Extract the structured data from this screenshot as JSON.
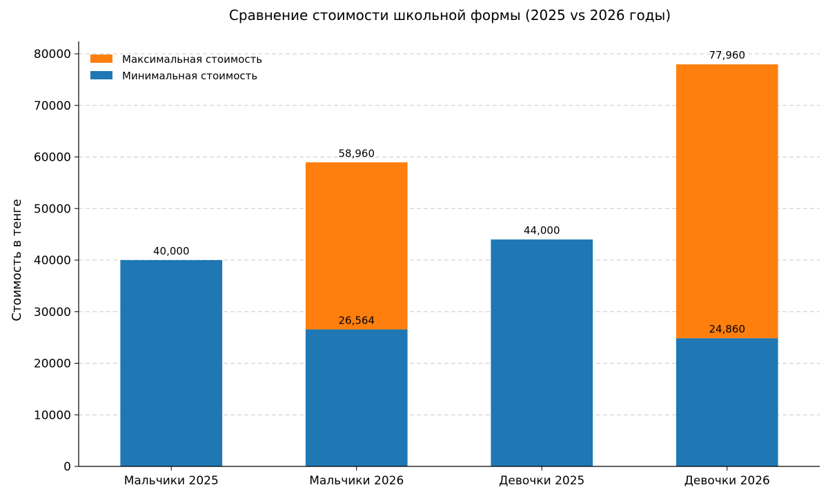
{
  "chart_data": {
    "type": "bar",
    "stacked": true,
    "title": "Сравнение стоимости школьной формы (2025 vs 2026 годы)",
    "xlabel": "",
    "ylabel": "Стоимость в тенге",
    "ylim": [
      0,
      80000
    ],
    "yticks": [
      0,
      10000,
      20000,
      30000,
      40000,
      50000,
      60000,
      70000,
      80000
    ],
    "categories": [
      "Мальчики 2025",
      "Мальчики 2026",
      "Девочки 2025",
      "Девочки 2026"
    ],
    "series": [
      {
        "name": "Минимальная стоимость",
        "color": "#1f77b4",
        "values": [
          40000,
          26564,
          44000,
          24860
        ]
      },
      {
        "name": "Максимальная стоимость",
        "color": "#ff7f0e",
        "values": [
          0,
          32396,
          0,
          53100
        ]
      }
    ],
    "data_labels": {
      "totals": [
        "40,000",
        "58,960",
        "44,000",
        "77,960"
      ],
      "minimums": [
        "",
        "26,564",
        "",
        "24,860"
      ]
    },
    "legend": {
      "placement": "top-left",
      "entries": [
        {
          "label": "Максимальная стоимость",
          "color": "#ff7f0e"
        },
        {
          "label": "Минимальная стоимость",
          "color": "#1f77b4"
        }
      ]
    },
    "grid": {
      "y": true,
      "style": "dashed"
    }
  }
}
